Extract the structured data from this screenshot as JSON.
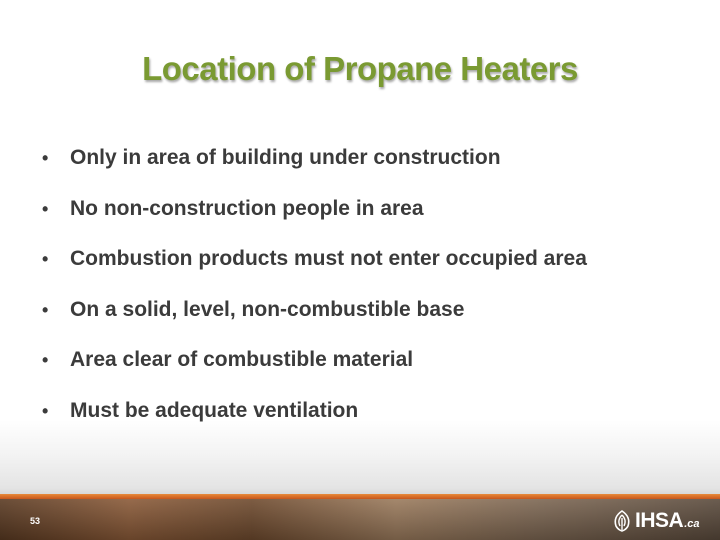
{
  "slide": {
    "title": "Location of Propane Heaters",
    "bullets": [
      "Only in area of building under construction",
      "No non-construction people in area",
      "Combustion products must not enter occupied area",
      "On a solid, level, non-combustible base",
      "Area clear of combustible material",
      "Must be  adequate ventilation"
    ],
    "bullet_symbol": "•",
    "page_number": "53"
  },
  "footer": {
    "logo_text": "IHSA",
    "logo_suffix": ".ca",
    "logo_icon": "ihsa-leaf-icon"
  },
  "colors": {
    "title": "#7a9a32",
    "body_text": "#3b3b3b",
    "footer_accent": "#e07a30"
  }
}
